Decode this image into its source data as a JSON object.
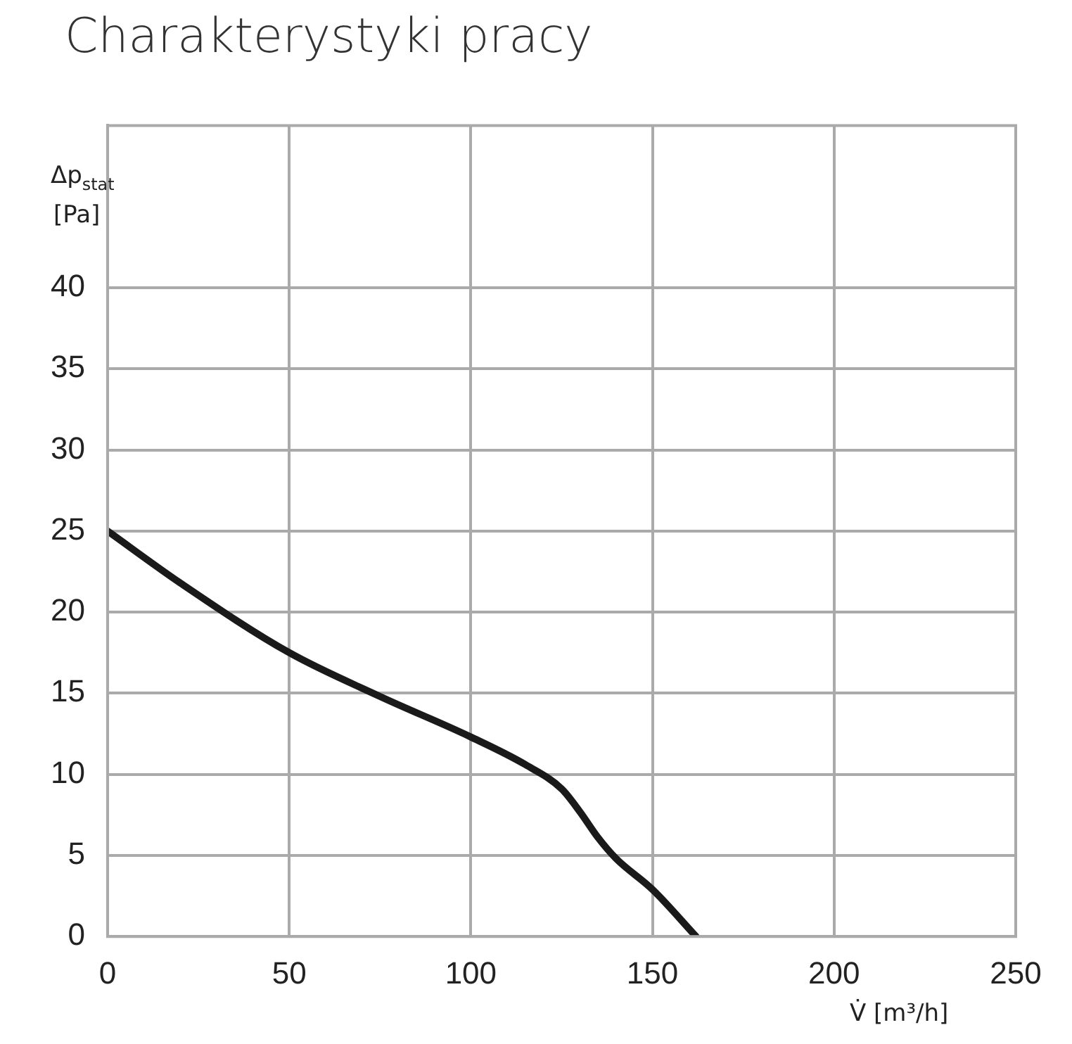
{
  "chart_data": {
    "type": "line",
    "title": "Charakterystyki pracy",
    "xlabel": "V̇ [m³/h]",
    "ylabel": "Δp$_{stat}$ [Pa]",
    "x": [
      0,
      20,
      50,
      75,
      100,
      115,
      125,
      130,
      135,
      140,
      150,
      162
    ],
    "series": [
      {
        "color": "#1a1a1a",
        "values": [
          25,
          21.8,
          17.5,
          14.8,
          12.3,
          10.6,
          9.1,
          7.7,
          6.1,
          4.8,
          2.9,
          0
        ]
      }
    ],
    "xlim": [
      0,
      250
    ],
    "xticks": [
      0,
      50,
      100,
      150,
      200,
      250
    ],
    "ylim": [
      0,
      50
    ],
    "yticks": [
      0,
      5,
      10,
      15,
      20,
      25,
      30,
      35,
      40
    ],
    "grid": true,
    "legend": false,
    "marker": "none",
    "line_style": "solid"
  }
}
